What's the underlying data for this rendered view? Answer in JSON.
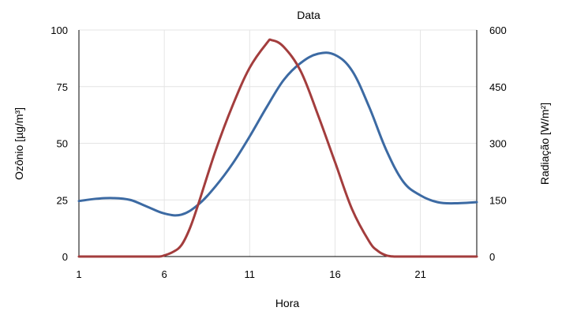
{
  "chart_data": {
    "type": "line",
    "title": "Data",
    "xlabel": "Hora",
    "ylabel_left": "Ozônio [µg/m³]",
    "ylabel_right": "Radiação [W/m²]",
    "xlim": [
      1,
      24.3
    ],
    "ylim_left": [
      0,
      100
    ],
    "ylim_right": [
      0,
      600
    ],
    "x_ticks": [
      1,
      6,
      11,
      16,
      21
    ],
    "y_ticks_left": [
      0,
      25,
      50,
      75,
      100
    ],
    "y_ticks_right": [
      0,
      150,
      300,
      450,
      600
    ],
    "grid": true,
    "series": [
      {
        "axis": "left",
        "color": "#3c6aa3",
        "x": [
          1,
          2,
          3,
          4,
          5,
          6,
          7,
          8,
          9,
          10,
          11,
          12,
          13,
          14,
          15,
          16,
          17,
          18,
          19,
          20,
          21,
          22,
          23,
          24.3
        ],
        "values": [
          24.5,
          25.5,
          25.8,
          25.0,
          22.0,
          19.0,
          18.5,
          23.0,
          31.0,
          41.0,
          53.0,
          66.0,
          78.0,
          85.5,
          89.5,
          89.0,
          82.0,
          66.0,
          47.0,
          33.0,
          27.0,
          24.0,
          23.5,
          24.0
        ]
      },
      {
        "axis": "right",
        "color": "#a33d3d",
        "x": [
          1,
          2,
          3,
          4,
          5,
          5.7,
          6,
          6.5,
          7,
          7.5,
          8,
          9,
          10,
          11,
          12,
          12.3,
          13,
          14,
          15,
          16,
          17,
          18,
          18.5,
          19,
          19.5,
          20,
          21,
          22,
          23,
          24.3
        ],
        "values": [
          0,
          0,
          0,
          0,
          0,
          0,
          3,
          12,
          30,
          75,
          140,
          280,
          400,
          500,
          565,
          573,
          555,
          490,
          375,
          250,
          125,
          40,
          15,
          3,
          0,
          0,
          0,
          0,
          0,
          0
        ]
      }
    ]
  }
}
